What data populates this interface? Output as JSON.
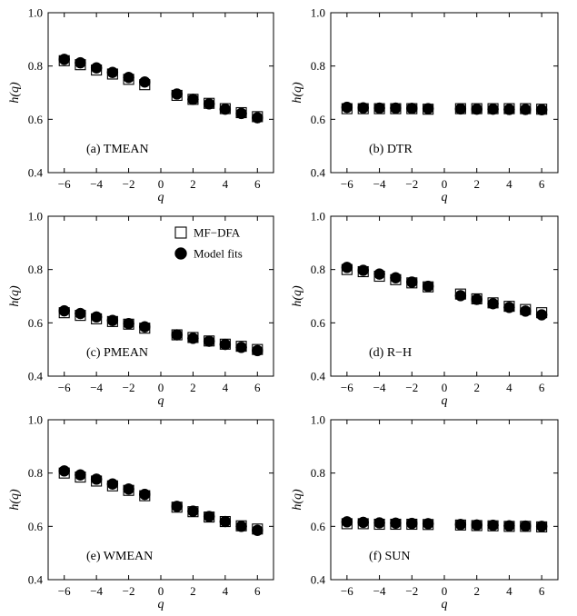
{
  "chart_data": [
    {
      "type": "scatter",
      "panel_label": "(a) TMEAN",
      "xlabel": "q",
      "ylabel": "h(q)",
      "xlim": [
        -7,
        7
      ],
      "ylim": [
        0.4,
        1.0
      ],
      "xticks": [
        -6,
        -4,
        -2,
        0,
        2,
        4,
        6
      ],
      "yticks": [
        0.4,
        0.6,
        0.8,
        1.0
      ],
      "ytick_labels": [
        "0.4",
        "0.6",
        "0.8",
        "1.0"
      ],
      "x": [
        -6,
        -5,
        -4,
        -3,
        -2,
        -1,
        1,
        2,
        3,
        4,
        5,
        6
      ],
      "series": [
        {
          "name": "MF−DFA",
          "marker": "open-square",
          "values": [
            0.82,
            0.805,
            0.785,
            0.77,
            0.75,
            0.73,
            0.69,
            0.675,
            0.66,
            0.64,
            0.625,
            0.61
          ]
        },
        {
          "name": "Model fits",
          "marker": "filled-circle",
          "values": [
            0.825,
            0.812,
            0.793,
            0.776,
            0.757,
            0.74,
            0.695,
            0.675,
            0.658,
            0.638,
            0.622,
            0.606
          ]
        }
      ]
    },
    {
      "type": "scatter",
      "panel_label": "(b) DTR",
      "xlabel": "q",
      "ylabel": "h(q)",
      "xlim": [
        -7,
        7
      ],
      "ylim": [
        0.4,
        1.0
      ],
      "xticks": [
        -6,
        -4,
        -2,
        0,
        2,
        4,
        6
      ],
      "yticks": [
        0.4,
        0.6,
        0.8,
        1.0
      ],
      "ytick_labels": [
        "0.4",
        "0.6",
        "0.8",
        "1.0"
      ],
      "x": [
        -6,
        -5,
        -4,
        -3,
        -2,
        -1,
        1,
        2,
        3,
        4,
        5,
        6
      ],
      "series": [
        {
          "name": "MF−DFA",
          "marker": "open-square",
          "values": [
            0.64,
            0.64,
            0.64,
            0.64,
            0.64,
            0.638,
            0.64,
            0.64,
            0.64,
            0.64,
            0.64,
            0.638
          ]
        },
        {
          "name": "Model fits",
          "marker": "filled-circle",
          "values": [
            0.645,
            0.643,
            0.642,
            0.642,
            0.641,
            0.64,
            0.639,
            0.638,
            0.638,
            0.637,
            0.637,
            0.636
          ]
        }
      ]
    },
    {
      "type": "scatter",
      "panel_label": "(c) PMEAN",
      "xlabel": "q",
      "ylabel": "h(q)",
      "xlim": [
        -7,
        7
      ],
      "ylim": [
        0.4,
        1.0
      ],
      "xticks": [
        -6,
        -4,
        -2,
        0,
        2,
        4,
        6
      ],
      "yticks": [
        0.4,
        0.6,
        0.8,
        1.0
      ],
      "ytick_labels": [
        "0.4",
        "0.6",
        "0.8",
        "1.0"
      ],
      "x": [
        -6,
        -5,
        -4,
        -3,
        -2,
        -1,
        1,
        2,
        3,
        4,
        5,
        6
      ],
      "legend": {
        "placement": "top-right",
        "entries": [
          "MF−DFA",
          "Model fits"
        ]
      },
      "series": [
        {
          "name": "MF−DFA",
          "marker": "open-square",
          "values": [
            0.638,
            0.628,
            0.615,
            0.605,
            0.595,
            0.58,
            0.555,
            0.545,
            0.532,
            0.52,
            0.512,
            0.5
          ]
        },
        {
          "name": "Model fits",
          "marker": "filled-circle",
          "values": [
            0.645,
            0.635,
            0.622,
            0.609,
            0.597,
            0.585,
            0.555,
            0.542,
            0.531,
            0.519,
            0.508,
            0.496
          ]
        }
      ]
    },
    {
      "type": "scatter",
      "panel_label": "(d) R−H",
      "xlabel": "q",
      "ylabel": "h(q)",
      "xlim": [
        -7,
        7
      ],
      "ylim": [
        0.4,
        1.0
      ],
      "xticks": [
        -6,
        -4,
        -2,
        0,
        2,
        4,
        6
      ],
      "yticks": [
        0.4,
        0.6,
        0.8,
        1.0
      ],
      "ytick_labels": [
        "0.4",
        "0.6",
        "0.8",
        "1.0"
      ],
      "x": [
        -6,
        -5,
        -4,
        -3,
        -2,
        -1,
        1,
        2,
        3,
        4,
        5,
        6
      ],
      "series": [
        {
          "name": "MF−DFA",
          "marker": "open-square",
          "values": [
            0.8,
            0.792,
            0.775,
            0.762,
            0.75,
            0.735,
            0.708,
            0.69,
            0.675,
            0.662,
            0.65,
            0.638
          ]
        },
        {
          "name": "Model fits",
          "marker": "filled-circle",
          "values": [
            0.808,
            0.797,
            0.783,
            0.769,
            0.753,
            0.737,
            0.702,
            0.688,
            0.672,
            0.658,
            0.644,
            0.63
          ]
        }
      ]
    },
    {
      "type": "scatter",
      "panel_label": "(e) WMEAN",
      "xlabel": "q",
      "ylabel": "h(q)",
      "xlim": [
        -7,
        7
      ],
      "ylim": [
        0.4,
        1.0
      ],
      "xticks": [
        -6,
        -4,
        -2,
        0,
        2,
        4,
        6
      ],
      "yticks": [
        0.4,
        0.6,
        0.8,
        1.0
      ],
      "ytick_labels": [
        "0.4",
        "0.6",
        "0.8",
        "1.0"
      ],
      "x": [
        -6,
        -5,
        -4,
        -3,
        -2,
        -1,
        1,
        2,
        3,
        4,
        5,
        6
      ],
      "series": [
        {
          "name": "MF−DFA",
          "marker": "open-square",
          "values": [
            0.8,
            0.785,
            0.77,
            0.752,
            0.735,
            0.715,
            0.672,
            0.655,
            0.635,
            0.618,
            0.602,
            0.59
          ]
        },
        {
          "name": "Model fits",
          "marker": "filled-circle",
          "values": [
            0.808,
            0.793,
            0.777,
            0.759,
            0.74,
            0.72,
            0.675,
            0.657,
            0.637,
            0.618,
            0.6,
            0.585
          ]
        }
      ]
    },
    {
      "type": "scatter",
      "panel_label": "(f) SUN",
      "xlabel": "q",
      "ylabel": "h(q)",
      "xlim": [
        -7,
        7
      ],
      "ylim": [
        0.4,
        1.0
      ],
      "xticks": [
        -6,
        -4,
        -2,
        0,
        2,
        4,
        6
      ],
      "yticks": [
        0.4,
        0.6,
        0.8,
        1.0
      ],
      "ytick_labels": [
        "0.4",
        "0.6",
        "0.8",
        "1.0"
      ],
      "x": [
        -6,
        -5,
        -4,
        -3,
        -2,
        -1,
        1,
        2,
        3,
        4,
        5,
        6
      ],
      "series": [
        {
          "name": "MF−DFA",
          "marker": "open-square",
          "values": [
            0.61,
            0.61,
            0.608,
            0.608,
            0.608,
            0.607,
            0.605,
            0.603,
            0.602,
            0.6,
            0.6,
            0.598
          ]
        },
        {
          "name": "Model fits",
          "marker": "filled-circle",
          "values": [
            0.617,
            0.615,
            0.613,
            0.612,
            0.611,
            0.61,
            0.607,
            0.605,
            0.604,
            0.602,
            0.601,
            0.6
          ]
        }
      ]
    }
  ]
}
